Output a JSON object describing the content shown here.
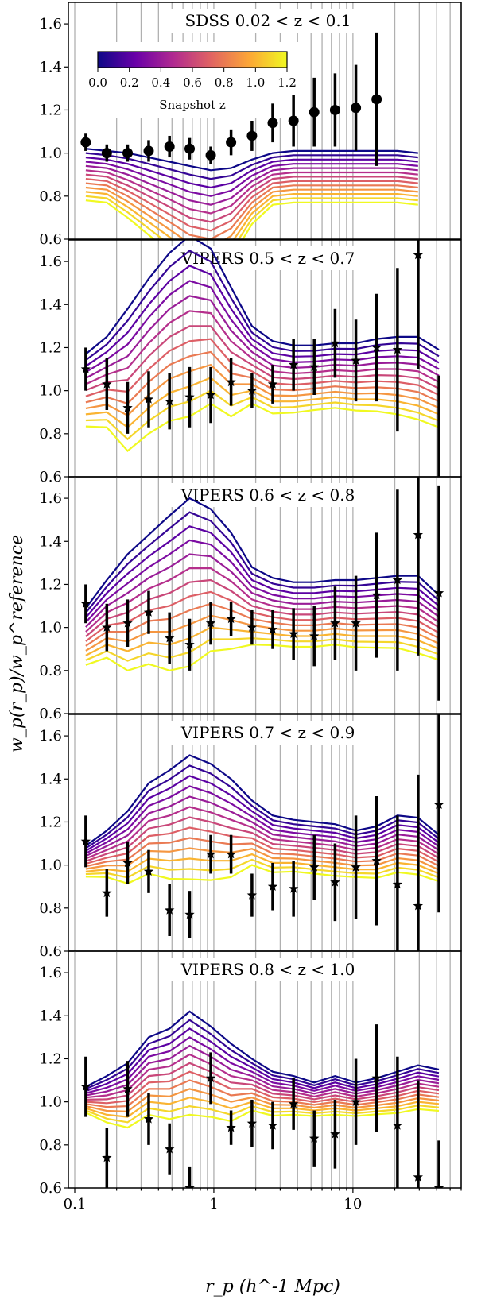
{
  "chart_data": {
    "type": "line",
    "xscale": "log",
    "xlim": [
      0.09,
      60
    ],
    "ylim": [
      0.6,
      1.7
    ],
    "x_ticks": [
      "0.1",
      "1",
      "10"
    ],
    "y_ticks": [
      "0.6",
      "0.8",
      "1.0",
      "1.2",
      "1.4",
      "1.6"
    ],
    "grid": true,
    "xlabel": "r_p  (h^-1 Mpc)",
    "ylabel": "w_p(r_p)/w_p^reference",
    "colorbar": {
      "label": "Snapshot z",
      "range": [
        0.0,
        1.2
      ],
      "ticks": [
        "0.0",
        "0.2",
        "0.4",
        "0.6",
        "0.8",
        "1.0",
        "1.2"
      ],
      "colormap": "plasma",
      "stops": [
        "#0d0887",
        "#6a00a8",
        "#b12a90",
        "#e16462",
        "#fca636",
        "#f0f921"
      ]
    },
    "snapshot_z": [
      0.0,
      0.1,
      0.2,
      0.3,
      0.4,
      0.5,
      0.6,
      0.7,
      0.8,
      0.9,
      1.0,
      1.1,
      1.2
    ],
    "x": [
      0.12,
      0.17,
      0.24,
      0.34,
      0.48,
      0.67,
      0.95,
      1.33,
      1.88,
      2.65,
      3.74,
      5.27,
      7.44,
      10.5,
      14.8,
      20.9,
      29.4,
      41.5
    ],
    "panels": [
      {
        "title": "SDSS 0.02 < z < 0.1",
        "marker": "circle",
        "has_colorbar": true,
        "model_base": [
          1.02,
          1.01,
          1.0,
          0.98,
          0.96,
          0.94,
          0.92,
          0.93,
          0.97,
          1.0,
          1.01,
          1.01,
          1.01,
          1.01,
          1.01,
          1.01,
          1.0
        ],
        "model_step": [
          0.02,
          0.02,
          0.025,
          0.03,
          0.035,
          0.04,
          0.04,
          0.035,
          0.025,
          0.02,
          0.02,
          0.02,
          0.02,
          0.02,
          0.02,
          0.02,
          0.02
        ],
        "obs_y": [
          1.05,
          1.0,
          1.0,
          1.01,
          1.03,
          1.02,
          0.99,
          1.05,
          1.08,
          1.14,
          1.15,
          1.19,
          1.2,
          1.21,
          1.25
        ],
        "obs_err": [
          0.04,
          0.04,
          0.04,
          0.05,
          0.05,
          0.05,
          0.04,
          0.06,
          0.07,
          0.09,
          0.12,
          0.16,
          0.17,
          0.2,
          0.31
        ]
      },
      {
        "title": "VIPERS 0.5 < z < 0.7",
        "marker": "star",
        "has_colorbar": false,
        "model_top": [
          1.17,
          1.25,
          1.38,
          1.52,
          1.64,
          1.72,
          1.66,
          1.48,
          1.3,
          1.23,
          1.21,
          1.21,
          1.22,
          1.22,
          1.24,
          1.25,
          1.25,
          1.19
        ],
        "model_step": [
          0.028,
          0.035,
          0.055,
          0.06,
          0.065,
          0.07,
          0.06,
          0.05,
          0.03,
          0.028,
          0.026,
          0.025,
          0.025,
          0.026,
          0.028,
          0.03,
          0.032,
          0.03
        ],
        "obs_y": [
          1.1,
          1.03,
          0.92,
          0.96,
          0.95,
          0.97,
          0.98,
          1.04,
          1.0,
          1.03,
          1.12,
          1.11,
          1.22,
          1.14,
          1.2,
          1.19,
          1.63,
          0.5
        ],
        "obs_err": [
          0.1,
          0.12,
          0.12,
          0.13,
          0.13,
          0.14,
          0.13,
          0.11,
          0.08,
          0.09,
          0.12,
          0.13,
          0.16,
          0.19,
          0.25,
          0.38,
          0.53,
          0.57
        ]
      },
      {
        "title": "VIPERS 0.6 < z < 0.8",
        "marker": "star",
        "has_colorbar": false,
        "model_top": [
          1.09,
          1.22,
          1.34,
          1.43,
          1.52,
          1.6,
          1.55,
          1.44,
          1.28,
          1.23,
          1.21,
          1.21,
          1.22,
          1.22,
          1.23,
          1.24,
          1.24,
          1.15
        ],
        "model_step": [
          0.022,
          0.03,
          0.045,
          0.05,
          0.06,
          0.065,
          0.055,
          0.045,
          0.03,
          0.026,
          0.025,
          0.025,
          0.025,
          0.026,
          0.027,
          0.028,
          0.03,
          0.025
        ],
        "obs_y": [
          1.11,
          1.0,
          1.02,
          1.07,
          0.95,
          0.92,
          1.02,
          1.04,
          1.0,
          0.99,
          0.97,
          0.96,
          1.02,
          1.02,
          1.15,
          1.22,
          1.43,
          1.16
        ],
        "obs_err": [
          0.09,
          0.11,
          0.11,
          0.1,
          0.12,
          0.12,
          0.1,
          0.08,
          0.08,
          0.09,
          0.12,
          0.14,
          0.17,
          0.22,
          0.29,
          0.42,
          0.56,
          0.5
        ]
      },
      {
        "title": "VIPERS 0.7 < z < 0.9",
        "marker": "star",
        "has_colorbar": false,
        "model_top": [
          1.09,
          1.16,
          1.25,
          1.38,
          1.44,
          1.51,
          1.47,
          1.4,
          1.3,
          1.23,
          1.21,
          1.2,
          1.19,
          1.16,
          1.18,
          1.23,
          1.22,
          1.14
        ],
        "model_step": [
          0.012,
          0.018,
          0.028,
          0.035,
          0.042,
          0.048,
          0.045,
          0.038,
          0.025,
          0.022,
          0.02,
          0.02,
          0.02,
          0.018,
          0.02,
          0.022,
          0.022,
          0.018
        ],
        "obs_y": [
          1.11,
          0.87,
          1.01,
          0.97,
          0.79,
          0.77,
          1.05,
          1.05,
          0.86,
          0.9,
          0.89,
          0.99,
          0.92,
          0.99,
          1.02,
          0.91,
          0.81,
          1.28
        ],
        "obs_err": [
          0.12,
          0.11,
          0.1,
          0.1,
          0.12,
          0.11,
          0.09,
          0.09,
          0.1,
          0.11,
          0.13,
          0.15,
          0.18,
          0.24,
          0.3,
          0.32,
          0.61,
          0.5
        ]
      },
      {
        "title": "VIPERS 0.8 < z < 1.0",
        "marker": "star",
        "has_colorbar": false,
        "model_top": [
          1.07,
          1.12,
          1.18,
          1.3,
          1.34,
          1.42,
          1.35,
          1.27,
          1.2,
          1.14,
          1.12,
          1.09,
          1.12,
          1.09,
          1.11,
          1.14,
          1.17,
          1.15
        ],
        "model_step": [
          0.01,
          0.018,
          0.025,
          0.03,
          0.035,
          0.04,
          0.035,
          0.03,
          0.02,
          0.017,
          0.015,
          0.013,
          0.015,
          0.013,
          0.014,
          0.016,
          0.017,
          0.016
        ],
        "obs_y": [
          1.07,
          0.74,
          1.06,
          0.92,
          0.78,
          0.6,
          1.11,
          0.88,
          0.9,
          0.89,
          0.99,
          0.83,
          0.85,
          1.0,
          1.11,
          0.89,
          0.65,
          0.6
        ],
        "obs_err": [
          0.14,
          0.14,
          0.13,
          0.12,
          0.12,
          0.1,
          0.12,
          0.08,
          0.11,
          0.11,
          0.12,
          0.13,
          0.16,
          0.2,
          0.25,
          0.32,
          0.45,
          0.22
        ]
      }
    ]
  }
}
